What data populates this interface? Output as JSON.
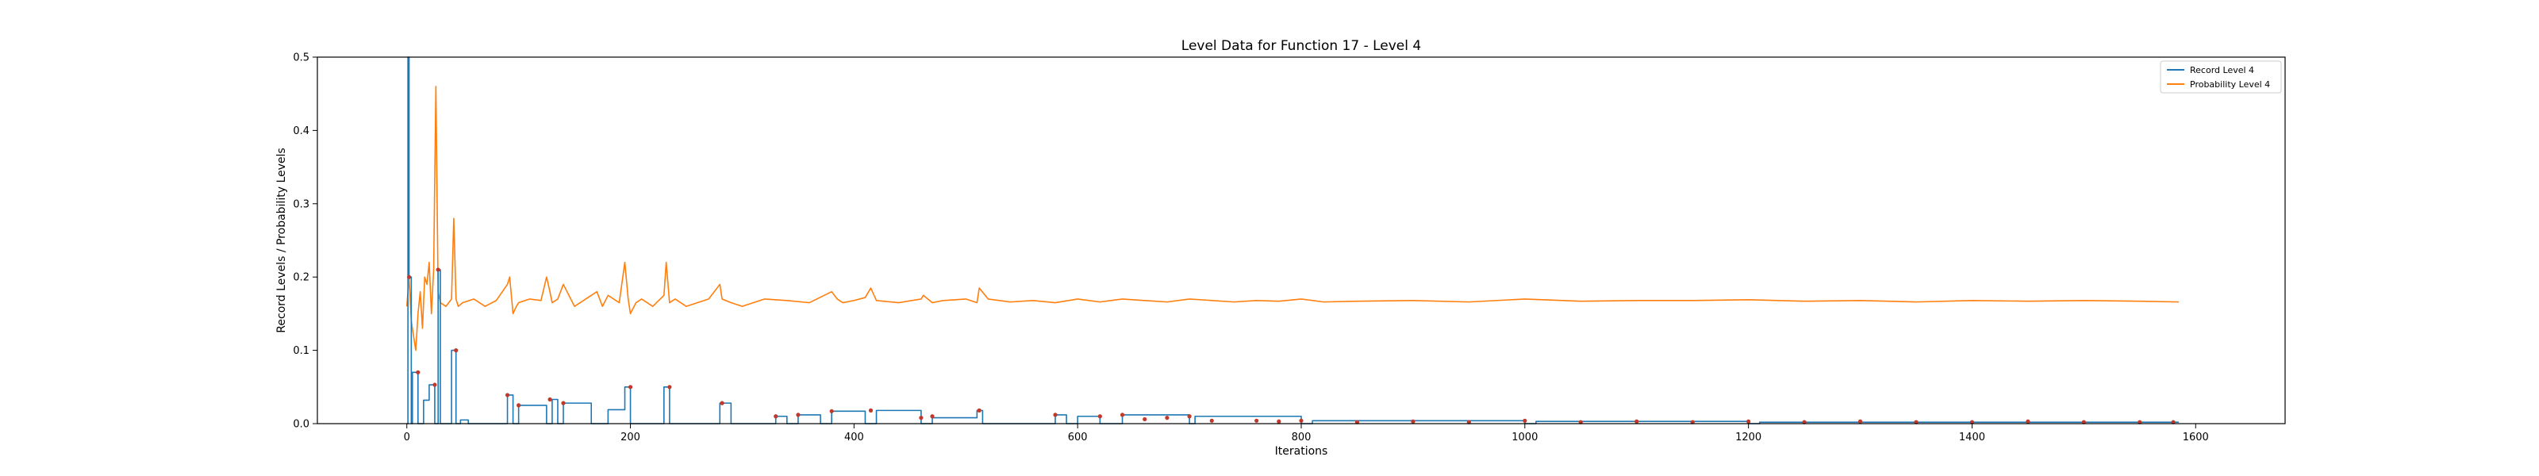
{
  "chart_data": {
    "type": "line",
    "title": "Level Data for Function 17 - Level 4",
    "xlabel": "Iterations",
    "ylabel": "Record Levels / Probability Levels",
    "xlim": [
      -80,
      1680
    ],
    "ylim": [
      0,
      0.5
    ],
    "xticks": [
      0,
      200,
      400,
      600,
      800,
      1000,
      1200,
      1400,
      1600
    ],
    "yticks": [
      0.0,
      0.1,
      0.2,
      0.3,
      0.4,
      0.5
    ],
    "ytick_labels": [
      "0.0",
      "0.1",
      "0.2",
      "0.3",
      "0.4",
      "0.5"
    ],
    "grid": false,
    "legend_position": "top-right",
    "colors": {
      "record": "#1f77b4",
      "probability": "#ff7f0e",
      "markers": "#c0392b"
    },
    "series": [
      {
        "name": "Record Level 4",
        "color": "#1f77b4",
        "x": [
          0,
          1,
          1,
          2,
          2,
          4,
          4,
          5,
          5,
          10,
          10,
          15,
          15,
          20,
          20,
          25,
          25,
          28,
          28,
          30,
          30,
          35,
          35,
          40,
          40,
          44,
          44,
          48,
          48,
          55,
          55,
          90,
          90,
          95,
          95,
          100,
          100,
          125,
          125,
          130,
          130,
          135,
          135,
          140,
          140,
          165,
          165,
          180,
          180,
          195,
          195,
          200,
          200,
          230,
          230,
          235,
          235,
          280,
          280,
          290,
          290,
          330,
          330,
          340,
          340,
          350,
          350,
          370,
          370,
          380,
          380,
          410,
          410,
          420,
          420,
          460,
          460,
          470,
          470,
          510,
          510,
          515,
          515,
          580,
          580,
          590,
          590,
          600,
          600,
          620,
          620,
          640,
          640,
          700,
          700,
          705,
          705,
          800,
          800,
          810,
          810,
          1000,
          1000,
          1010,
          1010,
          1200,
          1200,
          1210,
          1210,
          1585
        ],
        "y": [
          0.0,
          0.0,
          0.5,
          0.5,
          0.2,
          0.2,
          0.0,
          0.0,
          0.07,
          0.07,
          0.0,
          0.0,
          0.032,
          0.032,
          0.053,
          0.053,
          0.0,
          0.0,
          0.21,
          0.21,
          0.0,
          0.0,
          0.0,
          0.0,
          0.1,
          0.1,
          0.0,
          0.0,
          0.005,
          0.005,
          0.0,
          0.0,
          0.039,
          0.039,
          0.0,
          0.0,
          0.025,
          0.025,
          0.0,
          0.0,
          0.033,
          0.033,
          0.0,
          0.0,
          0.028,
          0.028,
          0.0,
          0.0,
          0.019,
          0.019,
          0.05,
          0.05,
          0.0,
          0.0,
          0.05,
          0.05,
          0.0,
          0.0,
          0.028,
          0.028,
          0.0,
          0.0,
          0.01,
          0.01,
          0.0,
          0.0,
          0.012,
          0.012,
          0.0,
          0.0,
          0.017,
          0.017,
          0.0,
          0.0,
          0.018,
          0.018,
          0.0,
          0.0,
          0.008,
          0.008,
          0.018,
          0.018,
          0.0,
          0.0,
          0.012,
          0.012,
          0.0,
          0.0,
          0.01,
          0.01,
          0.0,
          0.0,
          0.012,
          0.012,
          0.0,
          0.0,
          0.01,
          0.01,
          0.0,
          0.0,
          0.004,
          0.004,
          0.0,
          0.0,
          0.003,
          0.003,
          0.0,
          0.0,
          0.002,
          0.002
        ]
      },
      {
        "name": "Probability Level 4",
        "color": "#ff7f0e",
        "x": [
          0,
          2,
          4,
          6,
          8,
          10,
          12,
          14,
          16,
          18,
          20,
          22,
          24,
          26,
          28,
          30,
          35,
          40,
          42,
          44,
          46,
          50,
          60,
          70,
          80,
          90,
          92,
          95,
          98,
          100,
          110,
          120,
          125,
          128,
          130,
          135,
          140,
          150,
          160,
          170,
          175,
          180,
          190,
          195,
          198,
          200,
          205,
          210,
          220,
          230,
          232,
          235,
          240,
          250,
          260,
          270,
          280,
          282,
          290,
          300,
          320,
          340,
          360,
          380,
          385,
          390,
          400,
          410,
          415,
          420,
          440,
          460,
          462,
          470,
          480,
          500,
          510,
          512,
          520,
          540,
          560,
          580,
          600,
          620,
          640,
          660,
          680,
          700,
          720,
          740,
          760,
          780,
          800,
          820,
          850,
          900,
          950,
          1000,
          1050,
          1100,
          1150,
          1200,
          1250,
          1300,
          1350,
          1400,
          1450,
          1500,
          1550,
          1585
        ],
        "y": [
          0.16,
          0.2,
          0.14,
          0.12,
          0.1,
          0.15,
          0.18,
          0.13,
          0.2,
          0.19,
          0.22,
          0.15,
          0.21,
          0.46,
          0.18,
          0.165,
          0.16,
          0.17,
          0.28,
          0.17,
          0.16,
          0.165,
          0.17,
          0.16,
          0.168,
          0.19,
          0.2,
          0.15,
          0.16,
          0.165,
          0.17,
          0.168,
          0.2,
          0.18,
          0.165,
          0.17,
          0.19,
          0.16,
          0.17,
          0.18,
          0.16,
          0.175,
          0.165,
          0.22,
          0.17,
          0.15,
          0.165,
          0.17,
          0.16,
          0.175,
          0.22,
          0.165,
          0.17,
          0.16,
          0.165,
          0.17,
          0.19,
          0.17,
          0.165,
          0.16,
          0.17,
          0.168,
          0.165,
          0.18,
          0.17,
          0.165,
          0.168,
          0.172,
          0.185,
          0.168,
          0.165,
          0.17,
          0.175,
          0.165,
          0.168,
          0.17,
          0.165,
          0.185,
          0.17,
          0.166,
          0.168,
          0.165,
          0.17,
          0.166,
          0.17,
          0.168,
          0.166,
          0.17,
          0.168,
          0.166,
          0.168,
          0.167,
          0.17,
          0.166,
          0.167,
          0.168,
          0.166,
          0.17,
          0.167,
          0.168,
          0.168,
          0.169,
          0.167,
          0.168,
          0.166,
          0.168,
          0.167,
          0.168,
          0.167,
          0.166
        ]
      }
    ],
    "markers": {
      "color": "#c0392b",
      "x": [
        2,
        10,
        25,
        28,
        44,
        90,
        100,
        128,
        140,
        200,
        235,
        282,
        330,
        350,
        380,
        415,
        460,
        470,
        512,
        580,
        620,
        640,
        660,
        680,
        700,
        720,
        760,
        780,
        800,
        850,
        900,
        950,
        1000,
        1050,
        1100,
        1150,
        1200,
        1250,
        1300,
        1350,
        1400,
        1450,
        1500,
        1550,
        1580
      ],
      "y": [
        0.2,
        0.07,
        0.053,
        0.21,
        0.1,
        0.039,
        0.025,
        0.033,
        0.028,
        0.05,
        0.05,
        0.028,
        0.01,
        0.012,
        0.017,
        0.018,
        0.008,
        0.01,
        0.018,
        0.012,
        0.01,
        0.012,
        0.006,
        0.008,
        0.01,
        0.004,
        0.004,
        0.003,
        0.004,
        0.002,
        0.003,
        0.002,
        0.004,
        0.002,
        0.003,
        0.002,
        0.003,
        0.002,
        0.003,
        0.002,
        0.002,
        0.003,
        0.002,
        0.002,
        0.002
      ]
    }
  }
}
